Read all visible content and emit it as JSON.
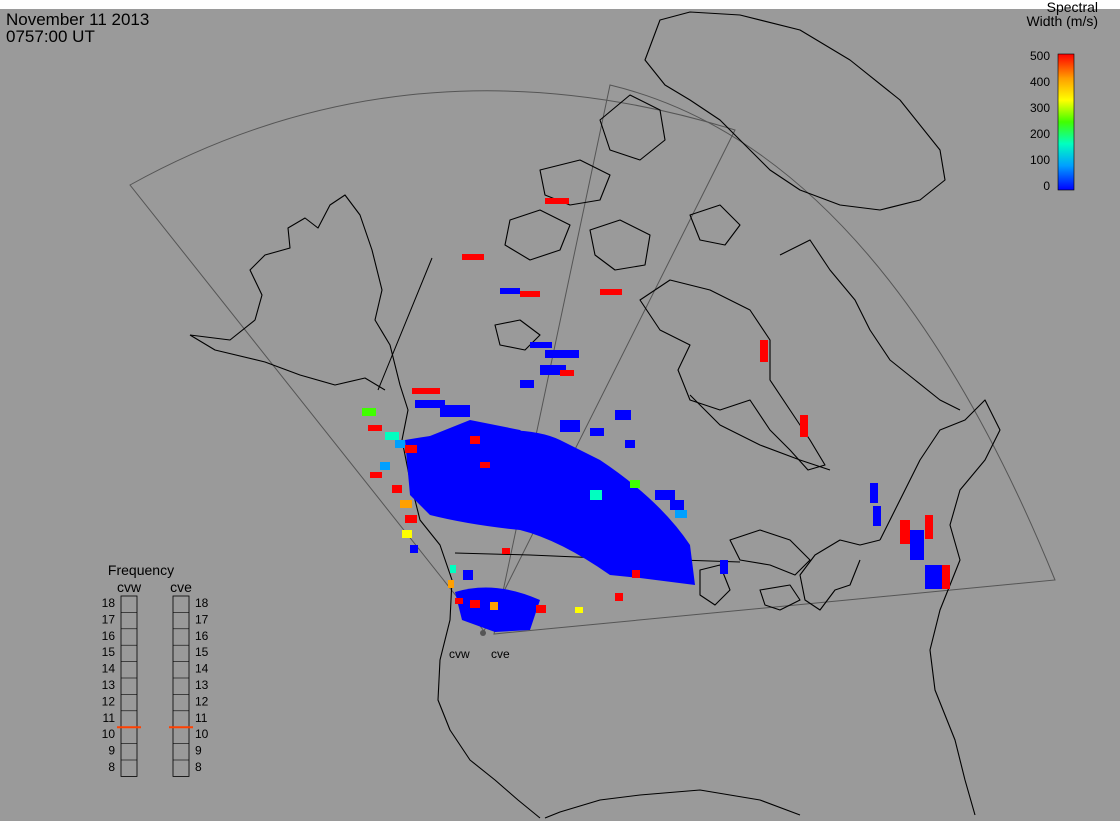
{
  "header": {
    "date": "November 11 2013",
    "time": "0757:00 UT"
  },
  "colorbar": {
    "title_line1": "Spectral",
    "title_line2": "Width (m/s)",
    "ticks": [
      "500",
      "400",
      "300",
      "200",
      "100",
      "0"
    ],
    "min": 0,
    "max": 500,
    "colors": [
      "#0000ff",
      "#00a0ff",
      "#00ffc0",
      "#40ff00",
      "#ffff00",
      "#ffa000",
      "#ff0000"
    ]
  },
  "frequency": {
    "title": "Frequency",
    "radars": [
      "cvw",
      "cve"
    ],
    "ticks": [
      "18",
      "17",
      "16",
      "15",
      "14",
      "13",
      "12",
      "11",
      "10",
      "9",
      "8"
    ],
    "min": 8,
    "max": 18,
    "values": [
      10.5,
      10.5
    ],
    "marker_color": "#ff4000"
  },
  "sites": {
    "labels": [
      "cvw",
      "cve"
    ]
  }
}
